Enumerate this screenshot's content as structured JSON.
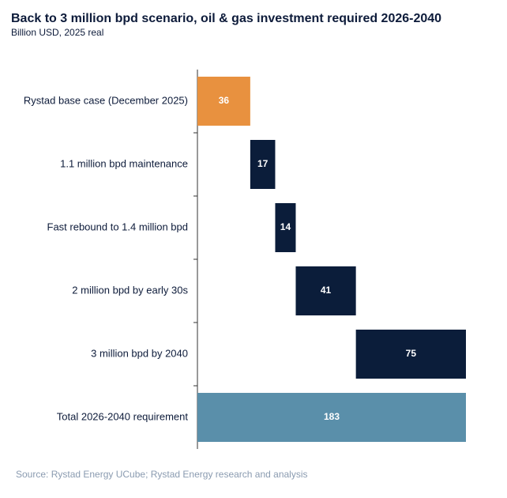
{
  "chart_data": {
    "type": "waterfall",
    "title": "Back to 3 million bpd scenario, oil & gas investment required 2026-2040",
    "subtitle": "Billion USD, 2025 real",
    "source": "Source: Rystad Energy UCube; Rystad Energy research and analysis",
    "categories": [
      "Rystad base case (December 2025)",
      "1.1 million bpd maintenance",
      "Fast rebound to 1.4 million bpd",
      "2 million bpd by early 30s",
      "3 million bpd by 2040",
      "Total 2026-2040 requirement"
    ],
    "values": [
      36,
      17,
      14,
      41,
      75,
      183
    ],
    "colors": [
      "#e8913f",
      "#0b1d3a",
      "#0b1d3a",
      "#0b1d3a",
      "#0b1d3a",
      "#5a8faa"
    ]
  }
}
